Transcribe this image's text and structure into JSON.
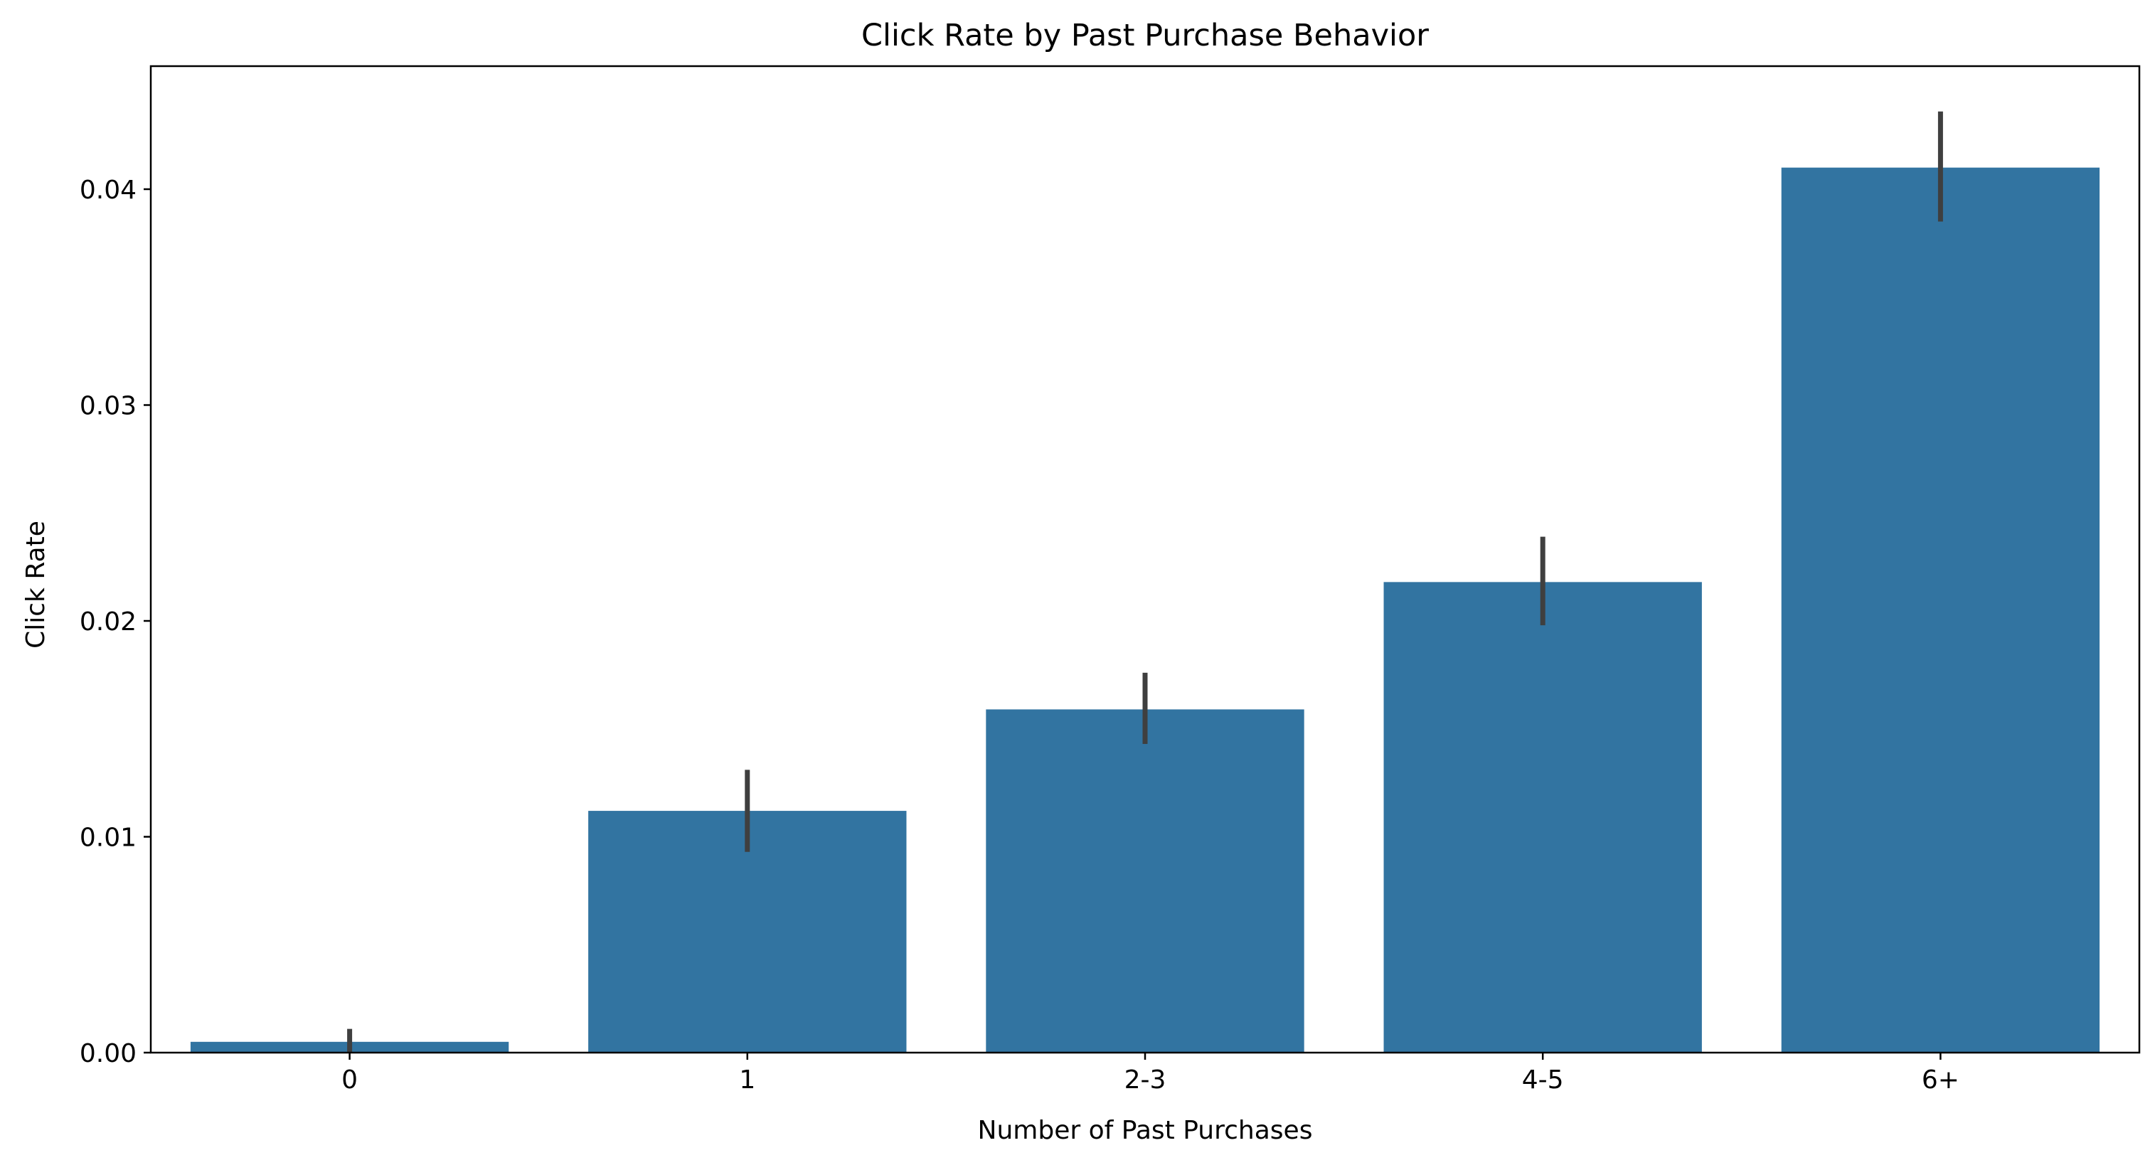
{
  "chart_data": {
    "type": "bar",
    "title": "Click Rate by Past Purchase Behavior",
    "xlabel": "Number of Past Purchases",
    "ylabel": "Click Rate",
    "categories": [
      "0",
      "1",
      "2-3",
      "4-5",
      "6+"
    ],
    "values": [
      0.0005,
      0.0112,
      0.0159,
      0.0218,
      0.041
    ],
    "error_low": [
      0.0,
      0.0093,
      0.0143,
      0.0198,
      0.0385
    ],
    "error_high": [
      0.0011,
      0.0131,
      0.0176,
      0.0239,
      0.0436
    ],
    "ylim": [
      0,
      0.0457
    ],
    "yticks": [
      0.0,
      0.01,
      0.02,
      0.03,
      0.04
    ],
    "ytick_labels": [
      "0.00",
      "0.01",
      "0.02",
      "0.03",
      "0.04"
    ],
    "grid": false,
    "legend": "none",
    "bar_color": "#3274a1",
    "error_color": "#3f3f3f"
  }
}
